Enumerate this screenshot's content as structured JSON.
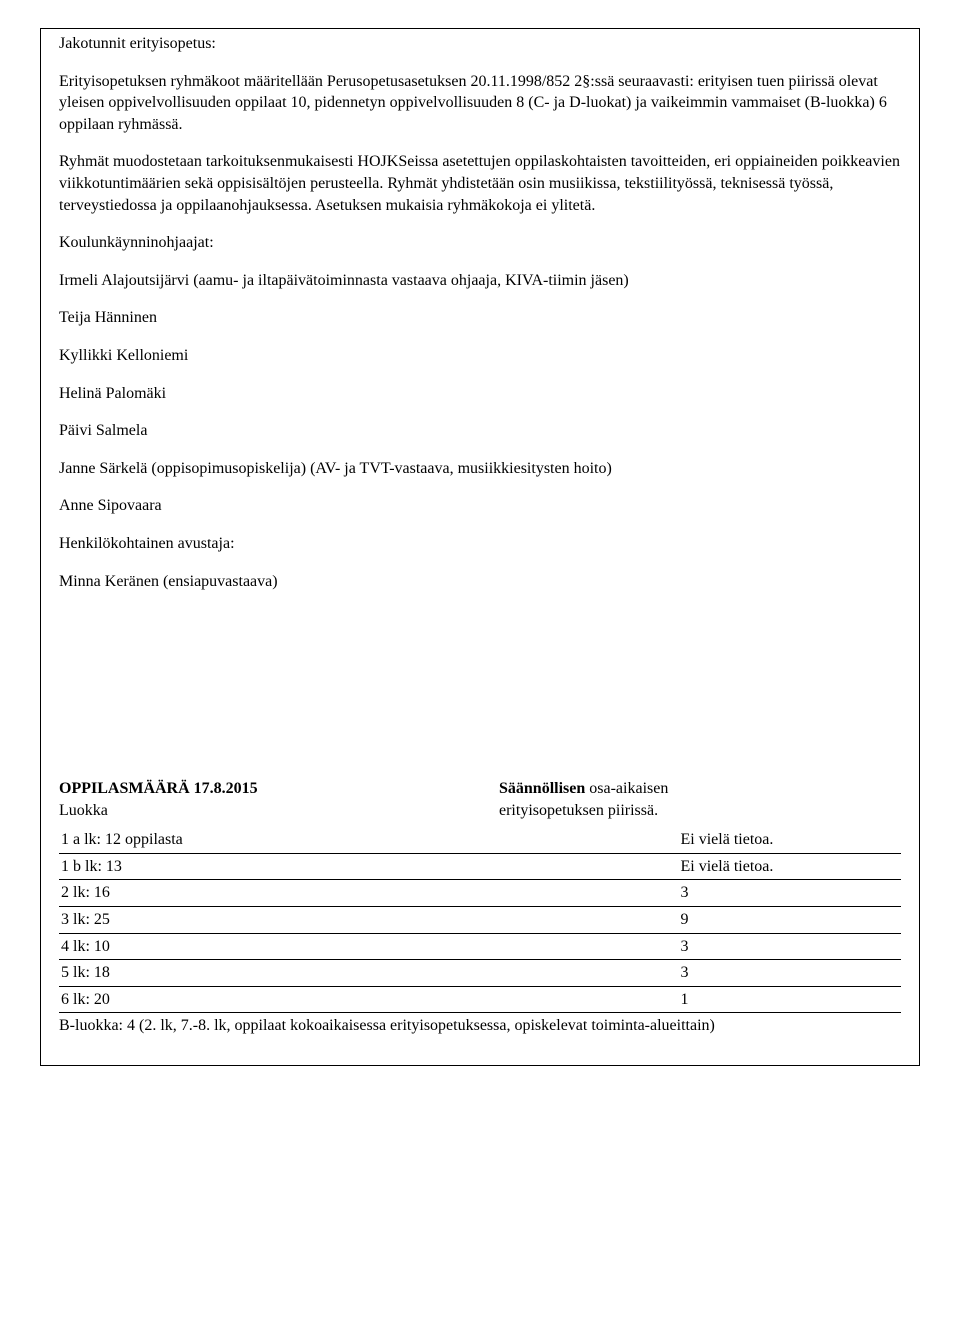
{
  "section1": {
    "title": "Jakotunnit erityisopetus:",
    "p1": "Erityisopetuksen ryhmäkoot määritellään Perusopetusasetuksen 20.11.1998/852 2§:ssä seuraavasti: erityisen tuen piirissä olevat yleisen oppivelvollisuuden oppilaat 10, pidennetyn oppivelvollisuuden 8 (C- ja D-luokat) ja vaikeimmin vammaiset (B-luokka) 6 oppilaan ryhmässä.",
    "p2": "Ryhmät muodostetaan tarkoituksenmukaisesti HOJKSeissa asetettujen oppilaskohtaisten tavoitteiden, eri oppiaineiden poikkeavien viikkotuntimäärien sekä oppisisältöjen perusteella. Ryhmät yhdistetään osin musiikissa, tekstiilityössä, teknisessä työssä, terveystiedossa ja oppilaanohjauksessa. Asetuksen mukaisia ryhmäkokoja ei ylitetä."
  },
  "section2": {
    "title": "Koulunkäynninohjaajat:",
    "person1": "Irmeli Alajoutsijärvi (aamu- ja iltapäivätoiminnasta vastaava ohjaaja, KIVA-tiimin jäsen)",
    "person2": "Teija Hänninen",
    "person3": "Kyllikki Kelloniemi",
    "person4": "Helinä Palomäki",
    "person5": "Päivi Salmela",
    "person6": "Janne Särkelä (oppisopimusopiskelija) (AV- ja TVT-vastaava, musiikkiesitysten hoito)",
    "person7": "Anne Sipovaara"
  },
  "section3": {
    "title": "Henkilökohtainen avustaja:",
    "person1": "Minna Keränen (ensiapuvastaava)"
  },
  "countSection": {
    "title": "OPPILASMÄÄRÄ 17.8.2015",
    "subtitle": "Luokka",
    "rightTitle": "Säännöllisen",
    "rightTitle2": " osa-aikaisen",
    "rightSub": "erityisopetuksen piirissä.",
    "rows": [
      {
        "label": "1 a lk: 12 oppilasta",
        "value": "Ei vielä tietoa."
      },
      {
        "label": "1 b lk: 13",
        "value": "Ei vielä tietoa."
      },
      {
        "label": "2 lk: 16",
        "value": "3"
      },
      {
        "label": "3 lk: 25",
        "value": "9"
      },
      {
        "label": "4 lk: 10",
        "value": "3"
      },
      {
        "label": "5 lk: 18",
        "value": "3"
      },
      {
        "label": "6 lk: 20",
        "value": "1"
      }
    ],
    "note": "B-luokka: 4 (2. lk, 7.-8. lk, oppilaat kokoaikaisessa erityisopetuksessa, opiskelevat toiminta-alueittain)"
  }
}
